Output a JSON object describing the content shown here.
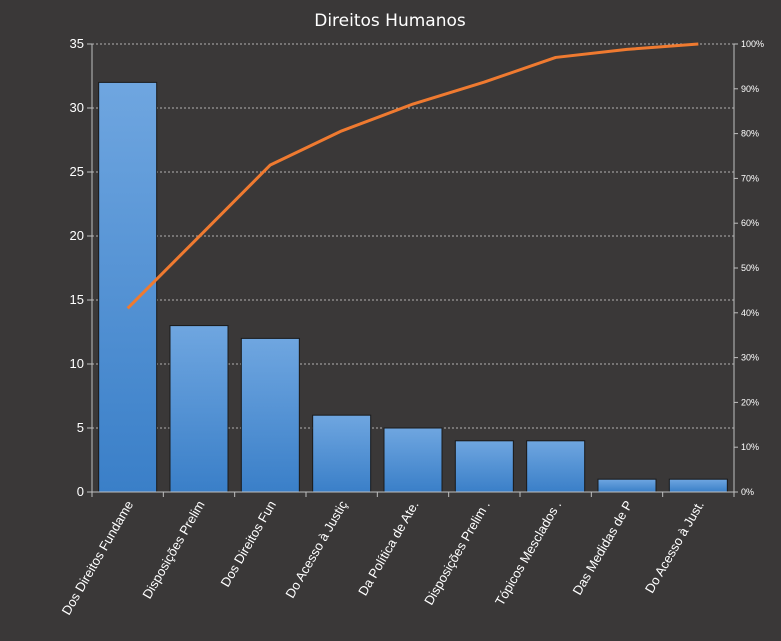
{
  "chart_data": {
    "type": "bar",
    "title": "Direitos Humanos",
    "categories": [
      "Dos Direitos Fundame",
      "Disposições Prelim",
      "Dos Direitos Fun",
      "Do Acesso à Justiç",
      "Da Política de Ate.",
      "Disposições Prelim .",
      "Tópicos Mesclados .",
      "Das Medidas de P",
      "Do Acesso à Just."
    ],
    "series": [
      {
        "type": "bar",
        "values": [
          32,
          13,
          12,
          6,
          5,
          4,
          4,
          1,
          1
        ]
      },
      {
        "type": "line",
        "axis": "secondary",
        "values": [
          41,
          57,
          73,
          80.6,
          86.6,
          91.5,
          97,
          98.8,
          100
        ]
      }
    ],
    "ylim": [
      0,
      35
    ],
    "yticks": [
      0,
      5,
      10,
      15,
      20,
      25,
      30,
      35
    ],
    "y2lim": [
      0,
      100
    ],
    "y2ticks": [
      "0%",
      "10%",
      "20%",
      "30%",
      "40%",
      "50%",
      "60%",
      "70%",
      "80%",
      "90%",
      "100%"
    ],
    "grid": true,
    "legend": "none",
    "colors": {
      "background": "#3a3838",
      "bar_top": "#6fa6e0",
      "bar_bottom": "#3a7fc8",
      "line": "#ef7a30",
      "grid": "#d9d9d9"
    }
  }
}
